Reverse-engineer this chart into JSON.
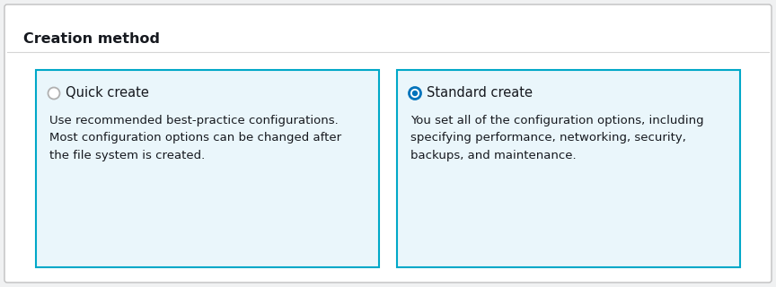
{
  "title": "Creation method",
  "bg_color": "#f0f1f2",
  "panel_bg": "#ffffff",
  "card_bg": "#eaf6fb",
  "card_border_color": "#00a8c8",
  "header_separator_color": "#d5d5d5",
  "outer_border_color": "#c0c0c0",
  "title_fontsize": 11.5,
  "title_color": "#16191f",
  "card1_title": "Quick create",
  "card1_desc": "Use recommended best-practice configurations.\nMost configuration options can be changed after\nthe file system is created.",
  "card1_selected": false,
  "card2_title": "Standard create",
  "card2_desc": "You set all of the configuration options, including\nspecifying performance, networking, security,\nbackups, and maintenance.",
  "card2_selected": true,
  "radio_color_selected": "#0073bb",
  "radio_color_unselected": "#b0b0b0",
  "card_title_fontsize": 10.5,
  "card_desc_fontsize": 9.5,
  "text_color": "#16191f",
  "desc_text_color": "#16191f"
}
